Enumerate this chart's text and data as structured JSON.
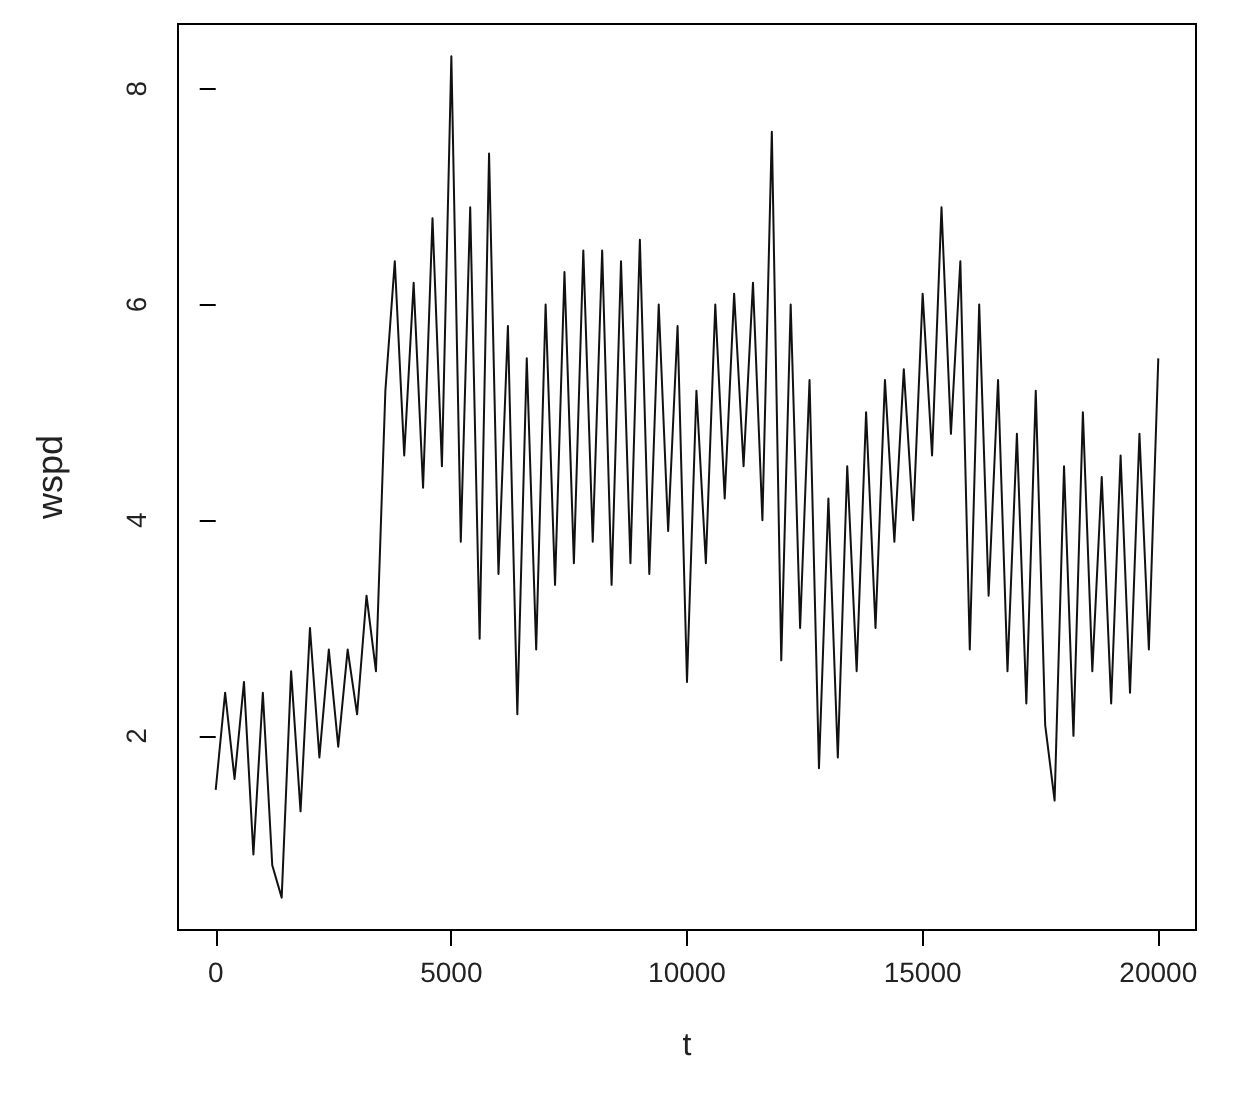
{
  "chart_data": {
    "type": "line",
    "xlabel": "t",
    "ylabel": "wspd",
    "xlim": [
      -800,
      20800
    ],
    "ylim": [
      0.2,
      8.6
    ],
    "xticks": [
      0,
      5000,
      10000,
      15000,
      20000
    ],
    "yticks": [
      2,
      4,
      6,
      8
    ],
    "grid": false,
    "marker": "none",
    "line_style": "solid",
    "x": [
      0,
      200,
      400,
      600,
      800,
      1000,
      1200,
      1400,
      1600,
      1800,
      2000,
      2200,
      2400,
      2600,
      2800,
      3000,
      3200,
      3400,
      3600,
      3800,
      4000,
      4200,
      4400,
      4600,
      4800,
      5000,
      5200,
      5400,
      5600,
      5800,
      6000,
      6200,
      6400,
      6600,
      6800,
      7000,
      7200,
      7400,
      7600,
      7800,
      8000,
      8200,
      8400,
      8600,
      8800,
      9000,
      9200,
      9400,
      9600,
      9800,
      10000,
      10200,
      10400,
      10600,
      10800,
      11000,
      11200,
      11400,
      11600,
      11800,
      12000,
      12200,
      12400,
      12600,
      12800,
      13000,
      13200,
      13400,
      13600,
      13800,
      14000,
      14200,
      14400,
      14600,
      14800,
      15000,
      15200,
      15400,
      15600,
      15800,
      16000,
      16200,
      16400,
      16600,
      16800,
      17000,
      17200,
      17400,
      17600,
      17800,
      18000,
      18200,
      18400,
      18600,
      18800,
      19000,
      19200,
      19400,
      19600,
      19800,
      20000
    ],
    "series": [
      {
        "color": "#111111",
        "values": [
          1.5,
          2.4,
          1.6,
          2.5,
          0.9,
          2.4,
          0.8,
          0.5,
          2.6,
          1.3,
          3.0,
          1.8,
          2.8,
          1.9,
          2.8,
          2.2,
          3.3,
          2.6,
          5.2,
          6.4,
          4.6,
          6.2,
          4.3,
          6.8,
          4.5,
          8.3,
          3.8,
          6.9,
          2.9,
          7.4,
          3.5,
          5.8,
          2.2,
          5.5,
          2.8,
          6.0,
          3.4,
          6.3,
          3.6,
          6.5,
          3.8,
          6.5,
          3.4,
          6.4,
          3.6,
          6.6,
          3.5,
          6.0,
          3.9,
          5.8,
          2.5,
          5.2,
          3.6,
          6.0,
          4.2,
          6.1,
          4.5,
          6.2,
          4.0,
          7.6,
          2.7,
          6.0,
          3.0,
          5.3,
          1.7,
          4.2,
          1.8,
          4.5,
          2.6,
          5.0,
          3.0,
          5.3,
          3.8,
          5.4,
          4.0,
          6.1,
          4.6,
          6.9,
          4.8,
          6.4,
          2.8,
          6.0,
          3.3,
          5.3,
          2.6,
          4.8,
          2.3,
          5.2,
          2.1,
          1.4,
          4.5,
          2.0,
          5.0,
          2.6,
          4.4,
          2.3,
          4.6,
          2.4,
          4.8,
          2.8,
          5.5
        ]
      }
    ]
  }
}
